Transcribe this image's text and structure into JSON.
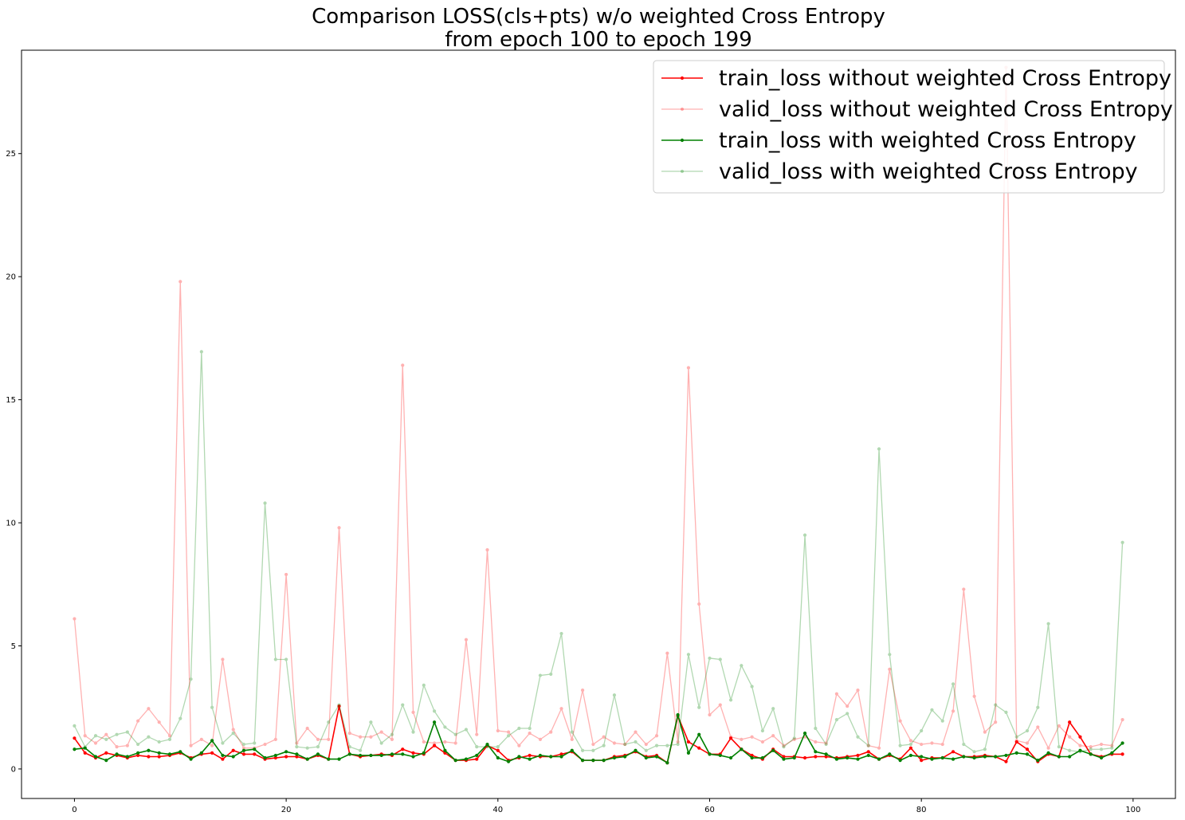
{
  "chart_data": {
    "type": "line",
    "title_lines": [
      "Comparison LOSS(cls+pts) w/o weighted Cross Entropy",
      "from epoch 100 to epoch 199"
    ],
    "xlabel": "",
    "ylabel": "",
    "xlim": [
      -5,
      104
    ],
    "ylim": [
      -1.2,
      29.2
    ],
    "xticks": [
      0,
      20,
      40,
      60,
      80,
      100
    ],
    "yticks": [
      0,
      5,
      10,
      15,
      20,
      25
    ],
    "grid": false,
    "legend_position": "top-right",
    "series": [
      {
        "name": "train_loss without weighted Cross Entropy",
        "color": "#ff0000",
        "opacity": 1.0,
        "values": [
          1.25,
          0.65,
          0.45,
          0.65,
          0.55,
          0.45,
          0.55,
          0.5,
          0.5,
          0.55,
          0.65,
          0.45,
          0.6,
          0.65,
          0.4,
          0.75,
          0.6,
          0.6,
          0.4,
          0.45,
          0.5,
          0.5,
          0.4,
          0.55,
          0.4,
          2.55,
          0.6,
          0.5,
          0.55,
          0.6,
          0.55,
          0.8,
          0.65,
          0.6,
          0.95,
          0.65,
          0.35,
          0.35,
          0.4,
          0.95,
          0.75,
          0.35,
          0.45,
          0.55,
          0.5,
          0.5,
          0.6,
          0.7,
          0.35,
          0.35,
          0.35,
          0.5,
          0.55,
          0.7,
          0.5,
          0.55,
          0.25,
          2.15,
          1.1,
          0.85,
          0.6,
          0.6,
          1.25,
          0.8,
          0.55,
          0.4,
          0.8,
          0.5,
          0.5,
          0.45,
          0.5,
          0.5,
          0.45,
          0.5,
          0.55,
          0.7,
          0.4,
          0.55,
          0.4,
          0.85,
          0.35,
          0.45,
          0.45,
          0.7,
          0.5,
          0.5,
          0.55,
          0.5,
          0.3,
          1.1,
          0.8,
          0.3,
          0.6,
          0.5,
          1.9,
          1.3,
          0.6,
          0.5,
          0.6,
          0.6
        ]
      },
      {
        "name": "valid_loss without weighted Cross Entropy",
        "color": "#ff0000",
        "opacity": 0.3,
        "values": [
          6.1,
          1.35,
          1.05,
          1.4,
          0.9,
          0.95,
          1.95,
          2.45,
          1.9,
          1.35,
          19.8,
          0.95,
          1.2,
          0.95,
          4.45,
          1.6,
          0.85,
          0.85,
          1.0,
          1.2,
          7.9,
          1.05,
          1.65,
          1.2,
          1.2,
          9.8,
          1.45,
          1.3,
          1.3,
          1.5,
          1.2,
          16.4,
          2.3,
          1.1,
          1.05,
          1.1,
          1.05,
          5.25,
          1.4,
          8.9,
          1.55,
          1.5,
          0.95,
          1.45,
          1.2,
          1.5,
          2.45,
          1.2,
          3.2,
          1.0,
          1.3,
          1.05,
          1.0,
          1.5,
          1.0,
          1.35,
          4.7,
          1.1,
          16.3,
          6.7,
          2.2,
          2.6,
          1.3,
          1.2,
          1.3,
          1.1,
          1.35,
          0.95,
          1.2,
          1.3,
          1.1,
          1.05,
          3.05,
          2.55,
          3.2,
          0.95,
          0.85,
          4.05,
          1.95,
          1.15,
          1.0,
          1.05,
          1.0,
          2.35,
          7.3,
          2.95,
          1.5,
          1.9,
          28.5,
          1.15,
          1.05,
          1.7,
          0.85,
          1.75,
          1.3,
          0.95,
          0.9,
          1.0,
          0.95,
          2.0
        ]
      },
      {
        "name": "train_loss with weighted Cross Entropy",
        "color": "#008000",
        "opacity": 1.0,
        "values": [
          0.8,
          0.85,
          0.5,
          0.35,
          0.6,
          0.5,
          0.65,
          0.75,
          0.65,
          0.6,
          0.7,
          0.4,
          0.65,
          1.15,
          0.55,
          0.5,
          0.75,
          0.8,
          0.45,
          0.55,
          0.7,
          0.6,
          0.4,
          0.6,
          0.4,
          0.4,
          0.6,
          0.55,
          0.55,
          0.55,
          0.6,
          0.6,
          0.5,
          0.65,
          1.9,
          0.75,
          0.35,
          0.4,
          0.55,
          1.0,
          0.45,
          0.3,
          0.5,
          0.4,
          0.55,
          0.5,
          0.5,
          0.75,
          0.35,
          0.35,
          0.35,
          0.45,
          0.5,
          0.75,
          0.45,
          0.5,
          0.25,
          2.2,
          0.65,
          1.4,
          0.6,
          0.55,
          0.45,
          0.8,
          0.45,
          0.45,
          0.75,
          0.4,
          0.45,
          1.45,
          0.7,
          0.6,
          0.4,
          0.45,
          0.4,
          0.55,
          0.4,
          0.6,
          0.35,
          0.55,
          0.5,
          0.4,
          0.45,
          0.4,
          0.5,
          0.45,
          0.5,
          0.5,
          0.55,
          0.65,
          0.6,
          0.35,
          0.65,
          0.5,
          0.5,
          0.75,
          0.6,
          0.45,
          0.65,
          1.05
        ]
      },
      {
        "name": "valid_loss with weighted Cross Entropy",
        "color": "#008000",
        "opacity": 0.3,
        "values": [
          1.75,
          0.9,
          1.35,
          1.2,
          1.4,
          1.5,
          1.0,
          1.3,
          1.1,
          1.2,
          2.05,
          3.65,
          16.95,
          2.5,
          1.05,
          1.45,
          1.0,
          1.05,
          10.8,
          4.45,
          4.45,
          0.9,
          0.85,
          0.9,
          1.9,
          2.6,
          0.9,
          0.75,
          1.9,
          1.05,
          1.4,
          2.6,
          1.5,
          3.4,
          2.35,
          1.7,
          1.4,
          1.6,
          0.9,
          0.9,
          0.9,
          1.35,
          1.65,
          1.65,
          3.8,
          3.85,
          5.5,
          1.5,
          0.75,
          0.75,
          0.95,
          3.0,
          1.0,
          1.1,
          0.75,
          0.95,
          0.95,
          1.0,
          4.65,
          2.5,
          4.5,
          4.45,
          2.8,
          4.2,
          3.35,
          1.55,
          2.45,
          0.9,
          1.25,
          9.5,
          1.65,
          1.0,
          2.0,
          2.25,
          1.3,
          0.95,
          13.0,
          4.65,
          0.95,
          1.0,
          1.55,
          2.4,
          1.95,
          3.45,
          1.0,
          0.7,
          0.8,
          2.6,
          2.3,
          1.3,
          1.55,
          2.5,
          5.9,
          0.9,
          0.75,
          0.7,
          0.8,
          0.8,
          0.85,
          9.2
        ]
      }
    ]
  }
}
